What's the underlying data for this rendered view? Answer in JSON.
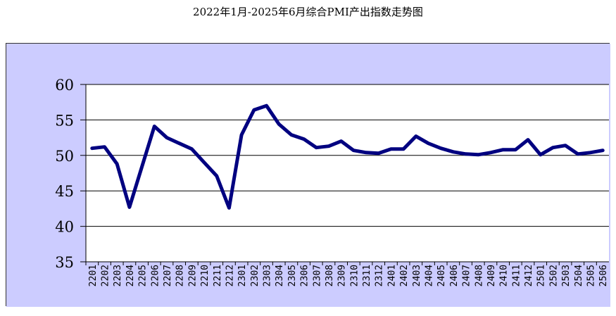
{
  "chart_data": {
    "type": "line",
    "title": "2022年1月-2025年6月综合PMI产出指数走势图",
    "xlabel": "",
    "ylabel": "",
    "ylim": [
      35,
      60
    ],
    "yticks": [
      "35",
      "40",
      "45",
      "50",
      "55",
      "60"
    ],
    "grid": true,
    "categories": [
      "2201",
      "2202",
      "2203",
      "2204",
      "2205",
      "2206",
      "2207",
      "2208",
      "2209",
      "2210",
      "2211",
      "2212",
      "2301",
      "2302",
      "2303",
      "2304",
      "2305",
      "2306",
      "2307",
      "2308",
      "2309",
      "2310",
      "2311",
      "2312",
      "2401",
      "2402",
      "2403",
      "2404",
      "2405",
      "2406",
      "2407",
      "2408",
      "2409",
      "2410",
      "2411",
      "2412",
      "2501",
      "2502",
      "2503",
      "2504",
      "2505",
      "2506"
    ],
    "series": [
      {
        "values": [
          51.0,
          51.2,
          48.8,
          42.7,
          48.4,
          54.1,
          52.5,
          51.7,
          50.9,
          49.0,
          47.1,
          42.6,
          52.9,
          56.4,
          57.0,
          54.4,
          52.9,
          52.3,
          51.1,
          51.3,
          52.0,
          50.7,
          50.4,
          50.3,
          50.9,
          50.9,
          52.7,
          51.7,
          51.0,
          50.5,
          50.2,
          50.1,
          50.4,
          50.8,
          50.8,
          52.2,
          50.1,
          51.1,
          51.4,
          50.2,
          50.4,
          50.7
        ]
      }
    ],
    "colors": {
      "plot_frame": "#ccccff",
      "plot_area": "#ffffff",
      "line": "#000080",
      "grid": "#000000"
    }
  }
}
